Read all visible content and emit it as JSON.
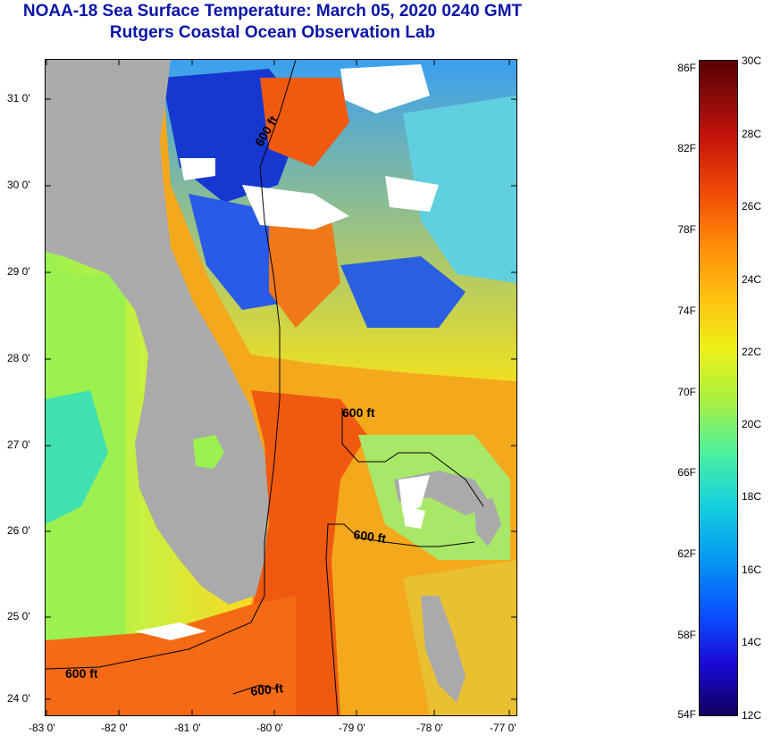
{
  "title": {
    "line1": "NOAA-18 Sea Surface Temperature:  March 05, 2020 0240 GMT",
    "line2": "Rutgers Coastal Ocean Observation Lab"
  },
  "axes": {
    "y_labels": [
      "31 0'",
      "30 0'",
      "29 0'",
      "28 0'",
      "27 0'",
      "26 0'",
      "25 0'",
      "24 0'"
    ],
    "x_labels": [
      "-83 0'",
      "-82 0'",
      "-81 0'",
      "-80 0'",
      "-79 0'",
      "-78 0'",
      "-77 0'"
    ]
  },
  "contour": {
    "label_upper": "600 ft",
    "label_bahamas": "600 ft",
    "label_mid": "600 ft",
    "label_left": "600 ft",
    "label_bottom": "600 ft"
  },
  "colorbar": {
    "fahrenheit": [
      "86F",
      "82F",
      "78F",
      "74F",
      "70F",
      "66F",
      "62F",
      "58F",
      "54F"
    ],
    "celsius": [
      "30C",
      "28C",
      "26C",
      "24C",
      "22C",
      "20C",
      "18C",
      "16C",
      "14C",
      "12C"
    ]
  },
  "colors": {
    "title": "#0a15a8",
    "land": "#aaaaaa",
    "cloud": "#ffffff",
    "gulf_stream": "#f05a10",
    "shelf_water": "#b8f040",
    "cold_water": "#1a3ad8"
  }
}
